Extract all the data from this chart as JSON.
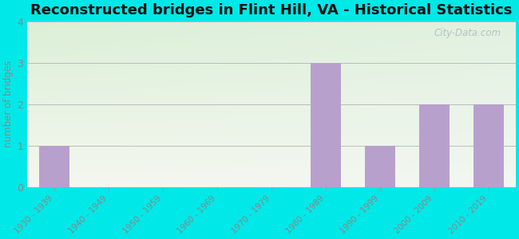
{
  "title": "Reconstructed bridges in Flint Hill, VA - Historical Statistics",
  "categories": [
    "1930 - 1939",
    "1940 - 1949",
    "1950 - 1959",
    "1960 - 1969",
    "1970 - 1979",
    "1980 - 1989",
    "1990 - 1999",
    "2000 - 2009",
    "2010 - 2019"
  ],
  "values": [
    1,
    0,
    0,
    0,
    0,
    3,
    1,
    2,
    2
  ],
  "bar_color": "#b8a0cc",
  "ylabel": "number of bridges",
  "ylim": [
    0,
    4
  ],
  "yticks": [
    0,
    1,
    2,
    3,
    4
  ],
  "background_outer": "#00e8e8",
  "bg_top_left": "#d8edd8",
  "bg_bottom_right": "#f0f5e8",
  "bg_top_right": "#e8f0f0",
  "grid_color": "#bbbbbb",
  "title_fontsize": 13,
  "tick_color": "#888888",
  "watermark": "City-Data.com"
}
